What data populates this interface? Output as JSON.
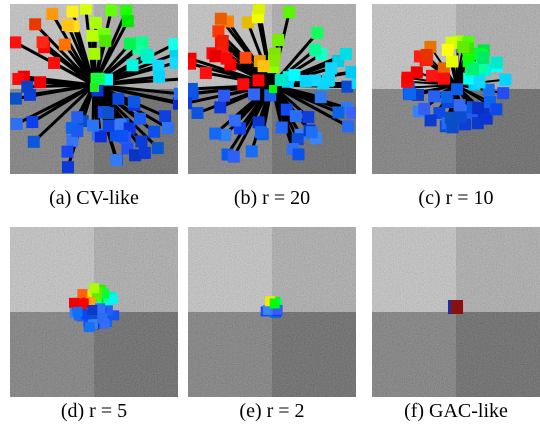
{
  "captions": [
    "(a) CV-like",
    "(b) r = 20",
    "(c) r = 10",
    "(d) r = 5",
    "(e) r = 2",
    "(f) GAC-like"
  ]
}
